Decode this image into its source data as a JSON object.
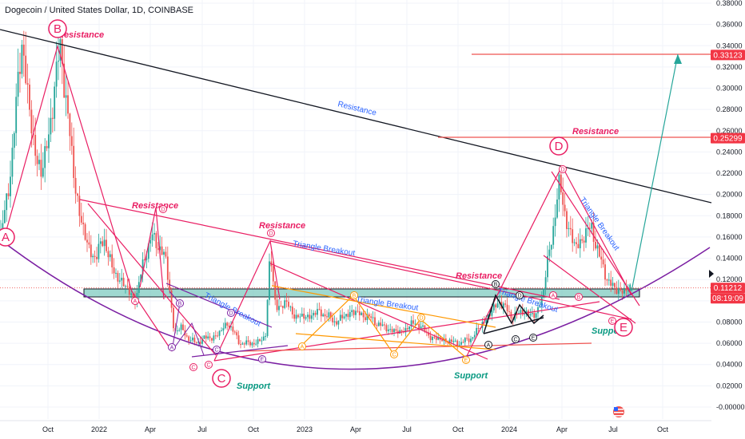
{
  "chart_data": {
    "type": "candlestick",
    "title": "Dogecoin / United States Dollar, 1D, COINBASE",
    "y_ticks": [
      "0.38000",
      "0.36000",
      "0.34000",
      "0.32000",
      "0.30000",
      "0.28000",
      "0.26000",
      "0.24000",
      "0.22000",
      "0.20000",
      "0.18000",
      "0.16000",
      "0.14000",
      "0.12000",
      "0.10000",
      "0.08000",
      "0.06000",
      "0.04000",
      "0.02000",
      "-0.00000"
    ],
    "ylim": [
      -0.005,
      0.385
    ],
    "x_ticks": [
      "Oct",
      "2022",
      "Apr",
      "Jul",
      "Oct",
      "2023",
      "Apr",
      "Jul",
      "Oct",
      "2024",
      "Apr",
      "Jul",
      "Oct"
    ],
    "price_badges": [
      {
        "value": "0.33123",
        "color": "#f23645"
      },
      {
        "value": "0.25299",
        "color": "#f23645"
      },
      {
        "value": "0.11212",
        "color": "#f23645"
      },
      {
        "value": "08:19:09",
        "color": "#f23645"
      }
    ],
    "annotations": {
      "resistance": "Resistance",
      "support": "Support",
      "triangle_breakout": "Triangle Breakout",
      "points_big": [
        "A",
        "B",
        "C",
        "D",
        "E"
      ],
      "points_small": [
        "A",
        "B",
        "C",
        "D",
        "E"
      ]
    },
    "levels": {
      "target": 0.33123,
      "resistance": 0.25299,
      "current": 0.11212,
      "support_zone": [
        0.105,
        0.112
      ]
    },
    "colors": {
      "up": "#26a69a",
      "down": "#ef5350",
      "pink": "#e91e63",
      "purple": "#7b1fa2",
      "orange": "#ff9800",
      "teal": "#089981",
      "blue": "#2962ff",
      "black": "#131722"
    }
  }
}
